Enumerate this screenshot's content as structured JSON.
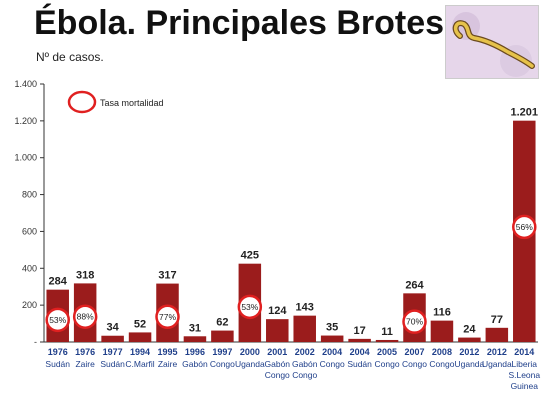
{
  "title": "Ébola. Principales Brotes.",
  "subtitle": "Nº de casos.",
  "colors": {
    "bar": "#9b1c1c",
    "circle": "#e02020",
    "axis": "#333333"
  },
  "legend": {
    "label": "Tasa mortalidad",
    "icon": "red-ring-icon"
  },
  "image": {
    "icon": "ebola-virus-image"
  },
  "chart_data": {
    "type": "bar",
    "title": "Ébola. Principales Brotes.",
    "ylabel": "Nº de casos.",
    "ylim": [
      0,
      1400
    ],
    "yticks": [
      "-",
      "200",
      "400",
      "600",
      "800",
      "1.000",
      "1.200",
      "1.400"
    ],
    "categories": [
      {
        "year": "1976",
        "place": [
          "Sudán"
        ]
      },
      {
        "year": "1976",
        "place": [
          "Zaire"
        ]
      },
      {
        "year": "1977",
        "place": [
          "Sudán"
        ]
      },
      {
        "year": "1994",
        "place": [
          "C.Marfil"
        ]
      },
      {
        "year": "1995",
        "place": [
          "Zaire"
        ]
      },
      {
        "year": "1996",
        "place": [
          "Gabón"
        ]
      },
      {
        "year": "1997",
        "place": [
          "Congo"
        ]
      },
      {
        "year": "2000",
        "place": [
          "Uganda"
        ]
      },
      {
        "year": "2001",
        "place": [
          "Gabón",
          "Congo"
        ]
      },
      {
        "year": "2002",
        "place": [
          "Gabón",
          "Congo"
        ]
      },
      {
        "year": "2004",
        "place": [
          "Congo"
        ]
      },
      {
        "year": "2004",
        "place": [
          "Sudán"
        ]
      },
      {
        "year": "2005",
        "place": [
          "Congo"
        ]
      },
      {
        "year": "2007",
        "place": [
          "Congo"
        ]
      },
      {
        "year": "2008",
        "place": [
          "Congo"
        ]
      },
      {
        "year": "2012",
        "place": [
          "Uganda"
        ]
      },
      {
        "year": "2012",
        "place": [
          "Uganda"
        ]
      },
      {
        "year": "2014",
        "place": [
          "Liberia",
          "S.Leona",
          "Guinea"
        ]
      }
    ],
    "values": [
      284,
      318,
      34,
      52,
      317,
      31,
      62,
      425,
      124,
      143,
      35,
      17,
      11,
      264,
      116,
      24,
      77,
      1201
    ],
    "value_labels": [
      "284",
      "318",
      "34",
      "52",
      "317",
      "31",
      "62",
      "425",
      "124",
      "143",
      "35",
      "17",
      "11",
      "264",
      "116",
      "24",
      "77",
      "1.201"
    ],
    "mortality": [
      {
        "index": 0,
        "label": "53%"
      },
      {
        "index": 1,
        "label": "88%"
      },
      {
        "index": 4,
        "label": "77%"
      },
      {
        "index": 7,
        "label": "53%"
      },
      {
        "index": 13,
        "label": "70%"
      },
      {
        "index": 17,
        "label": "56%"
      }
    ],
    "grid": false
  }
}
